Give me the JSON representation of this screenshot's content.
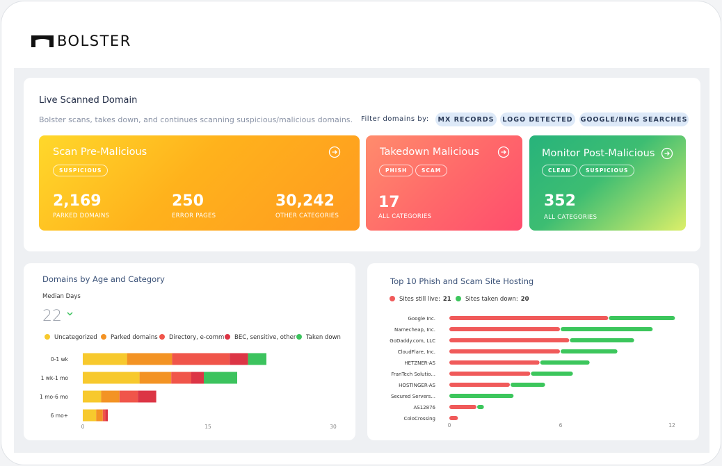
{
  "header": {
    "logo": "BOLSTER"
  },
  "summary": {
    "title": "Live Scanned Domain",
    "description": "Bolster scans, takes down, and continues scanning suspicious/malicious domains.",
    "filter_label": "Filter domains by:",
    "filters": [
      "MX RECORDS",
      "LOGO DETECTED",
      "GOOGLE/BING SEARCHES"
    ],
    "cards": [
      {
        "title": "Scan Pre-Malicious",
        "tags": [
          "SUSPICIOUS"
        ],
        "stats": [
          {
            "value": "2,169",
            "label": "PARKED DOMAINS"
          },
          {
            "value": "250",
            "label": "ERROR PAGES"
          },
          {
            "value": "30,242",
            "label": "OTHER CATEGORIES"
          }
        ]
      },
      {
        "title": "Takedown Malicious",
        "tags": [
          "PHISH",
          "SCAM"
        ],
        "stats": [
          {
            "value": "17",
            "label": "ALL CATEGORIES"
          }
        ]
      },
      {
        "title": "Monitor Post-Malicious",
        "tags": [
          "CLEAN",
          "SUSPICIOUS"
        ],
        "stats": [
          {
            "value": "352",
            "label": "ALL CATEGORIES"
          }
        ]
      }
    ]
  },
  "chart_data": [
    {
      "type": "bar",
      "orientation": "horizontal",
      "stacked": true,
      "title": "Domains by Age and Category",
      "median_label": "Median Days",
      "median_value": 22,
      "categories": [
        "0-1 wk",
        "1 wk-1 mo",
        "1 mo-6 mo",
        "6 mo+"
      ],
      "series": [
        {
          "name": "Uncategorized",
          "color": "#f7c92d",
          "values": [
            5.3,
            6.8,
            2.2,
            1.6
          ]
        },
        {
          "name": "Parked domains",
          "color": "#f39324",
          "values": [
            5.4,
            3.8,
            2.2,
            0.8
          ]
        },
        {
          "name": "Directory, e-comm",
          "color": "#f0554a",
          "values": [
            6.9,
            2.4,
            2.2,
            0.3
          ]
        },
        {
          "name": "BEC, sensitive, other",
          "color": "#dc3545",
          "values": [
            2.2,
            1.5,
            2.2,
            0.3
          ]
        },
        {
          "name": "Taken down",
          "color": "#3cc35e",
          "values": [
            2.2,
            4,
            0,
            0
          ]
        }
      ],
      "xlim": [
        0,
        30
      ],
      "xticks": [
        0,
        15,
        30
      ]
    },
    {
      "type": "bar",
      "orientation": "horizontal",
      "stacked": true,
      "title": "Top 10 Phish and Scam Site Hosting",
      "categories": [
        "Google Inc.",
        "Namecheap, Inc.",
        "GoDaddy.com, LLC",
        "CloudFlare, Inc.",
        "HETZNER-AS",
        "FranTech Solutio...",
        "HOSTINGER-AS",
        "Secured Servers...",
        "AS12876",
        "ColoCrossing"
      ],
      "series": [
        {
          "name": "Sites still live:",
          "total": 21,
          "color": "#f05a5a",
          "values": [
            8.6,
            6,
            6.5,
            6,
            4.9,
            4.4,
            3.3,
            0,
            1.5,
            0.5
          ]
        },
        {
          "name": "Sites taken down:",
          "total": 20,
          "color": "#3cc65c",
          "values": [
            3.6,
            5,
            3.5,
            3.1,
            2.7,
            2.3,
            1.9,
            3.5,
            0.4,
            0
          ]
        }
      ],
      "xlim": [
        0,
        12
      ],
      "xticks": [
        0,
        6,
        12
      ]
    }
  ]
}
